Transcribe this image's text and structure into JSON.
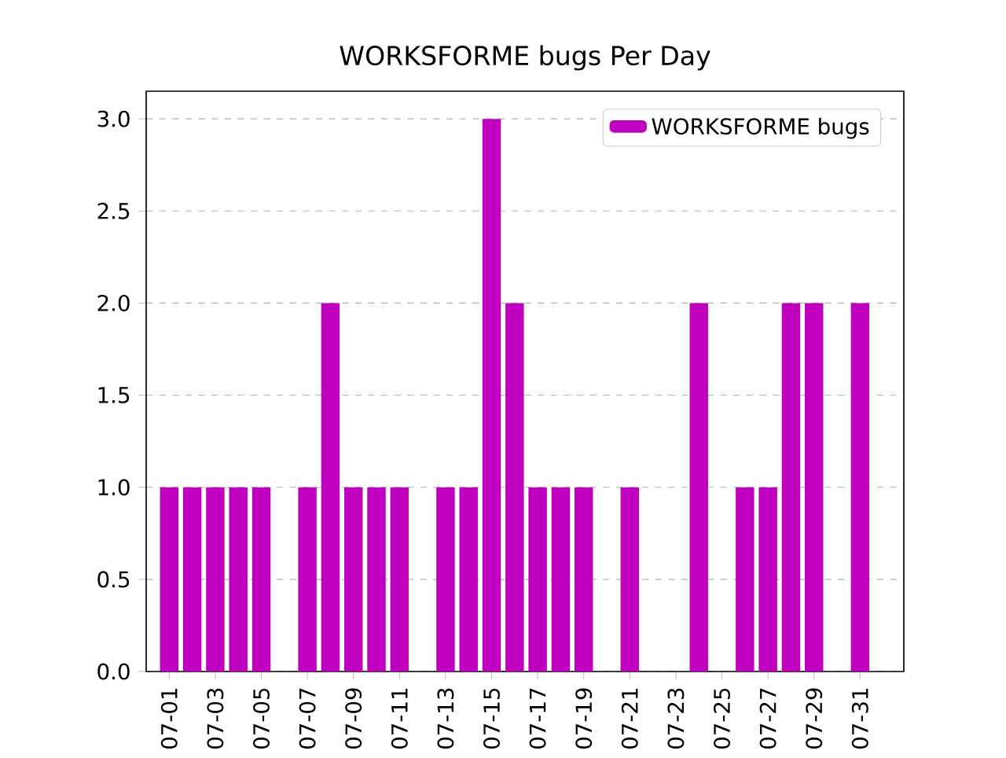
{
  "chart_data": {
    "type": "bar",
    "title": "WORKSFORME bugs Per Day",
    "categories": [
      "07-01",
      null,
      "07-03",
      null,
      "07-05",
      null,
      "07-07",
      null,
      "07-09",
      null,
      "07-11",
      null,
      "07-13",
      null,
      "07-15",
      null,
      "07-17",
      null,
      "07-19",
      null,
      "07-21",
      null,
      "07-23",
      null,
      "07-25",
      null,
      "07-27",
      null,
      "07-29",
      null,
      "07-31"
    ],
    "series": [
      {
        "name": "WORKSFORME bugs",
        "color": "#bf00bf",
        "values": [
          1,
          1,
          1,
          1,
          1,
          null,
          1,
          2,
          1,
          1,
          1,
          null,
          1,
          1,
          3,
          2,
          1,
          1,
          1,
          null,
          1,
          null,
          null,
          2,
          null,
          1,
          1,
          2,
          2,
          null,
          2
        ]
      }
    ],
    "ylim": [
      0,
      3.15
    ],
    "yticks": [
      {
        "value": 0,
        "label": "0.0"
      },
      {
        "value": 0.5,
        "label": "0.5"
      },
      {
        "value": 1,
        "label": "1.0"
      },
      {
        "value": 1.5,
        "label": "1.5"
      },
      {
        "value": 2,
        "label": "2.0"
      },
      {
        "value": 2.5,
        "label": "2.5"
      },
      {
        "value": 3,
        "label": "3.0"
      }
    ],
    "grid": "y",
    "legend": "top right"
  }
}
